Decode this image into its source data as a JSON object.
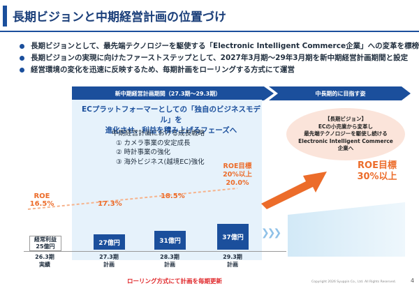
{
  "header": {
    "title": "長期ビジョンと中期経営計画の位置づけ"
  },
  "bullets": [
    "長期ビジョンとして、最先端テクノロジーを駆使する「Electronic Intelligent Commerce企業」への変革を標榜",
    "長期ビジョンの実現に向けたファーストステップとして、2027年3月期～29年3月期を新中期経営計画期間と設定",
    "経営環境の変化を迅速に反映するため、毎期計画をローリングする方式にて運営"
  ],
  "timeline": {
    "current_label": "新中期経営計画期間（27.3期〜29.3期）",
    "future_label": "中長期的に目指す姿"
  },
  "mid_plan": {
    "headline_1": "ECプラットフォーマーとしての「独自のビジネスモデル」を",
    "headline_2": "進化させ、利益を積み上げるフェーズへ",
    "strategy_title": "中期経営計画における成長戦略",
    "strategies": [
      "① カメラ事業の安定成長",
      "② 時計事業の強化",
      "③ 海外ビジネス(越境EC)強化"
    ]
  },
  "vision": {
    "label": "【長期ビジョン】",
    "line_1": "ECの小売業から変革し",
    "line_2": "最先端テクノロジーを駆使し続ける",
    "line_3": "Electronic Intelligent Commerce",
    "line_4": "企業へ"
  },
  "roe": {
    "base_label": "ROE",
    "base_value": "16.5%",
    "target_label": "ROE目標",
    "target_value_1": "20%以上",
    "long_target_label": "ROE目標",
    "long_target_value": "30%以上"
  },
  "chart_data": {
    "type": "bar",
    "categories": [
      "26.3期 実績",
      "27.3期 計画",
      "28.3期 計画",
      "29.3期 計画"
    ],
    "profit_label": "経常利益",
    "profit_values": [
      "25億円",
      "27億円",
      "31億円",
      "37億円"
    ],
    "profit_numeric": [
      25,
      27,
      31,
      37
    ],
    "roe_values": [
      "16.5%",
      "17.3%",
      "18.5%",
      "20.0%"
    ],
    "roe_numeric": [
      16.5,
      17.3,
      18.5,
      20.0
    ]
  },
  "years": [
    {
      "year": "26.3期",
      "kind": "実績"
    },
    {
      "year": "27.3期",
      "kind": "計画"
    },
    {
      "year": "28.3期",
      "kind": "計画"
    },
    {
      "year": "29.3期",
      "kind": "計画"
    }
  ],
  "footer": {
    "rolling_note": "ローリング方式にて計画を毎期更新",
    "copyright": "Copyright 2026 Syuppin Co., Ltd. All Rights Reserved.",
    "page": "4"
  },
  "colors": {
    "brand": "#1b4f9c",
    "accent": "#ec6c2a",
    "panel": "#e6f2fb",
    "bubble": "#fbe4da",
    "footer_red": "#e0282b"
  }
}
